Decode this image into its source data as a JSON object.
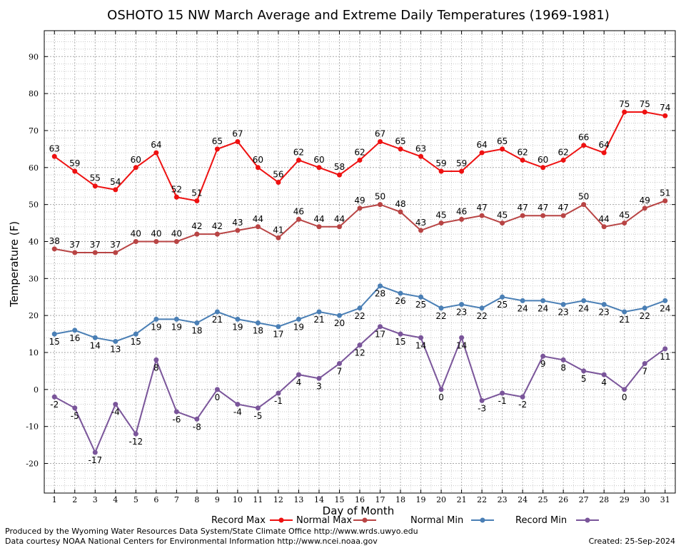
{
  "chart_data": {
    "type": "line",
    "title": "OSHOTO 15 NW March Average and Extreme Daily Temperatures (1969-1981)",
    "xlabel": "Day of Month",
    "ylabel": "Temperature (F)",
    "ylim": [
      -28,
      97
    ],
    "yticks": [
      -20,
      -10,
      0,
      10,
      20,
      30,
      40,
      50,
      60,
      70,
      80,
      90
    ],
    "x": [
      1,
      2,
      3,
      4,
      5,
      6,
      7,
      8,
      9,
      10,
      11,
      12,
      13,
      14,
      15,
      16,
      17,
      18,
      19,
      20,
      21,
      22,
      23,
      24,
      25,
      26,
      27,
      28,
      29,
      30,
      31
    ],
    "grid": true,
    "legend_position": "bottom",
    "series": [
      {
        "name": "Record Max",
        "color": "#ee1111",
        "label_pos": "above",
        "values": [
          63,
          59,
          55,
          54,
          60,
          64,
          52,
          51,
          65,
          67,
          60,
          56,
          62,
          60,
          58,
          62,
          67,
          65,
          63,
          59,
          59,
          64,
          65,
          62,
          60,
          62,
          66,
          64,
          75,
          75,
          74
        ]
      },
      {
        "name": "Normal Max",
        "color": "#b84444",
        "label_pos": "above",
        "values": [
          38,
          37,
          37,
          37,
          40,
          40,
          40,
          42,
          42,
          43,
          44,
          41,
          46,
          44,
          44,
          49,
          50,
          48,
          43,
          45,
          46,
          47,
          45,
          47,
          47,
          47,
          50,
          44,
          45,
          49,
          51
        ]
      },
      {
        "name": "Normal Min",
        "color": "#4a7fb5",
        "label_pos": "below",
        "values": [
          15,
          16,
          14,
          13,
          15,
          19,
          19,
          18,
          21,
          19,
          18,
          17,
          19,
          21,
          20,
          22,
          28,
          26,
          25,
          22,
          23,
          22,
          25,
          24,
          24,
          23,
          24,
          23,
          21,
          22,
          24
        ]
      },
      {
        "name": "Record Min",
        "color": "#7a559a",
        "label_pos": "below",
        "values": [
          -2,
          -5,
          -17,
          -4,
          -12,
          8,
          -6,
          -8,
          0,
          -4,
          -5,
          -1,
          4,
          3,
          7,
          12,
          17,
          15,
          14,
          0,
          14,
          -3,
          -1,
          -2,
          9,
          8,
          5,
          4,
          0,
          7,
          11
        ]
      }
    ]
  },
  "footer": {
    "credit": "Produced by the Wyoming Water Resources Data System/State Climate Office http://www.wrds.uwyo.edu",
    "source": "Data courtesy NOAA National Centers for Environmental Information http://www.ncei.noaa.gov",
    "created": "Created:  25-Sep-2024"
  }
}
